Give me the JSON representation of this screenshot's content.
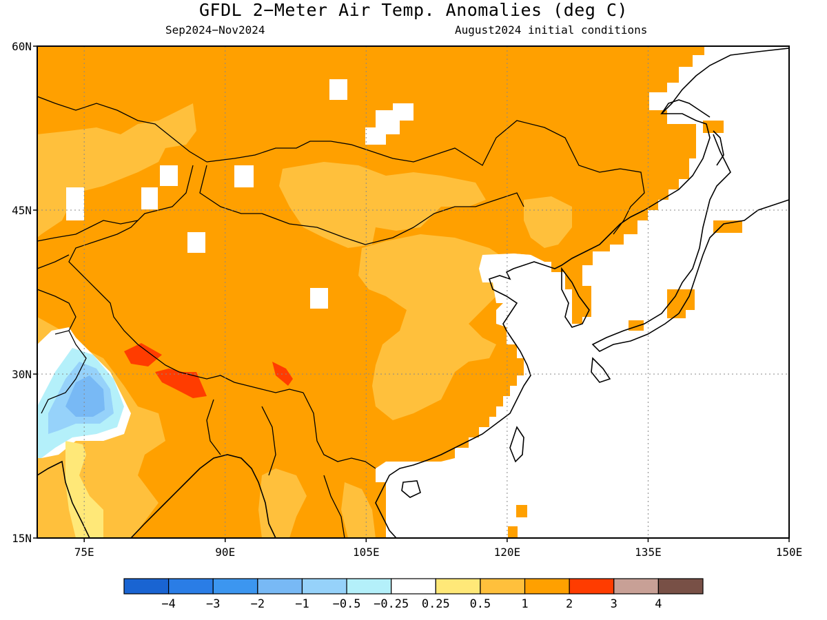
{
  "title": "GFDL 2−Meter Air Temp. Anomalies (deg C)",
  "subtitle_left": "Sep2024−Nov2024",
  "subtitle_right": "August2024 initial conditions",
  "map": {
    "lat_range": [
      15,
      60
    ],
    "lon_range": [
      70,
      150
    ],
    "lat_ticks": [
      {
        "value": 60,
        "label": "60N"
      },
      {
        "value": 45,
        "label": "45N"
      },
      {
        "value": 30,
        "label": "30N"
      },
      {
        "value": 15,
        "label": "15N"
      }
    ],
    "lon_ticks": [
      {
        "value": 75,
        "label": "75E"
      },
      {
        "value": 90,
        "label": "90E"
      },
      {
        "value": 105,
        "label": "105E"
      },
      {
        "value": 120,
        "label": "120E"
      },
      {
        "value": 135,
        "label": "135E"
      },
      {
        "value": 150,
        "label": "150E"
      }
    ],
    "gridlines": "dotted"
  },
  "colorbar": {
    "colors": [
      "#1964d2",
      "#2a7de6",
      "#3c96f0",
      "#78b9f5",
      "#96d2fa",
      "#b4f0fa",
      "#ffffff",
      "#ffe878",
      "#ffc03c",
      "#ffa000",
      "#ff3c00",
      "#c8a096",
      "#785046"
    ],
    "labels": [
      "−4",
      "−3",
      "−2",
      "−1",
      "−0.5",
      "−0.25",
      "0.25",
      "0.5",
      "1",
      "2",
      "3",
      "4"
    ]
  },
  "color_keys": {
    "land_light": "#ffc03c",
    "land_main": "#ffa000",
    "hot": "#ff3c00",
    "neutral": "#ffffff",
    "pale": "#ffe878",
    "cool1": "#b4f0fa",
    "cool2": "#96d2fa",
    "cool3": "#78b9f5"
  }
}
